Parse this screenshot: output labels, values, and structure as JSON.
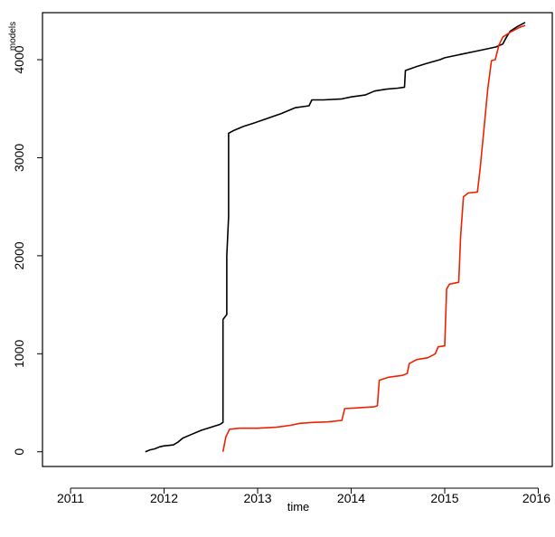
{
  "chart_data": {
    "type": "line",
    "title": "",
    "xlabel": "time",
    "ylabel": "models",
    "xlim": [
      2010.7,
      2016.15
    ],
    "ylim": [
      -150,
      4480
    ],
    "x_ticks": [
      2011,
      2012,
      2013,
      2014,
      2015,
      2016
    ],
    "x_tick_labels": [
      "2011",
      "2012",
      "2013",
      "2014",
      "2015",
      "2016"
    ],
    "y_ticks": [
      0,
      1000,
      2000,
      3000,
      4000
    ],
    "y_tick_labels": [
      "0",
      "1000",
      "2000",
      "3000",
      "4000"
    ],
    "grid": false,
    "legend": "none",
    "series": [
      {
        "color": "#000000",
        "points": [
          [
            2011.8,
            0
          ],
          [
            2011.85,
            20
          ],
          [
            2011.9,
            30
          ],
          [
            2011.95,
            50
          ],
          [
            2012.0,
            60
          ],
          [
            2012.05,
            65
          ],
          [
            2012.1,
            70
          ],
          [
            2012.15,
            100
          ],
          [
            2012.2,
            140
          ],
          [
            2012.3,
            180
          ],
          [
            2012.4,
            220
          ],
          [
            2012.5,
            250
          ],
          [
            2012.6,
            280
          ],
          [
            2012.63,
            300
          ],
          [
            2012.63,
            1350
          ],
          [
            2012.67,
            1400
          ],
          [
            2012.67,
            2000
          ],
          [
            2012.69,
            2400
          ],
          [
            2012.69,
            3250
          ],
          [
            2012.75,
            3280
          ],
          [
            2012.85,
            3320
          ],
          [
            2012.95,
            3350
          ],
          [
            2013.1,
            3400
          ],
          [
            2013.25,
            3450
          ],
          [
            2013.4,
            3510
          ],
          [
            2013.55,
            3530
          ],
          [
            2013.58,
            3590
          ],
          [
            2013.7,
            3590
          ],
          [
            2013.9,
            3600
          ],
          [
            2014.0,
            3620
          ],
          [
            2014.15,
            3640
          ],
          [
            2014.25,
            3680
          ],
          [
            2014.38,
            3700
          ],
          [
            2014.5,
            3710
          ],
          [
            2014.57,
            3720
          ],
          [
            2014.58,
            3890
          ],
          [
            2014.7,
            3930
          ],
          [
            2014.8,
            3960
          ],
          [
            2014.95,
            4000
          ],
          [
            2015.0,
            4020
          ],
          [
            2015.15,
            4050
          ],
          [
            2015.3,
            4080
          ],
          [
            2015.45,
            4110
          ],
          [
            2015.55,
            4130
          ],
          [
            2015.62,
            4160
          ],
          [
            2015.66,
            4230
          ],
          [
            2015.7,
            4290
          ],
          [
            2015.78,
            4340
          ],
          [
            2015.86,
            4380
          ]
        ]
      },
      {
        "color": "#ee2200",
        "points": [
          [
            2012.63,
            0
          ],
          [
            2012.66,
            150
          ],
          [
            2012.7,
            230
          ],
          [
            2012.8,
            240
          ],
          [
            2013.0,
            240
          ],
          [
            2013.2,
            250
          ],
          [
            2013.35,
            270
          ],
          [
            2013.45,
            290
          ],
          [
            2013.6,
            300
          ],
          [
            2013.75,
            305
          ],
          [
            2013.9,
            320
          ],
          [
            2013.93,
            440
          ],
          [
            2014.1,
            450
          ],
          [
            2014.25,
            460
          ],
          [
            2014.28,
            470
          ],
          [
            2014.3,
            730
          ],
          [
            2014.4,
            760
          ],
          [
            2014.55,
            780
          ],
          [
            2014.6,
            800
          ],
          [
            2014.62,
            900
          ],
          [
            2014.7,
            940
          ],
          [
            2014.82,
            960
          ],
          [
            2014.9,
            1000
          ],
          [
            2014.93,
            1070
          ],
          [
            2015.0,
            1080
          ],
          [
            2015.02,
            1660
          ],
          [
            2015.05,
            1710
          ],
          [
            2015.15,
            1730
          ],
          [
            2015.17,
            2200
          ],
          [
            2015.2,
            2600
          ],
          [
            2015.25,
            2640
          ],
          [
            2015.35,
            2650
          ],
          [
            2015.38,
            2900
          ],
          [
            2015.42,
            3300
          ],
          [
            2015.46,
            3700
          ],
          [
            2015.5,
            3990
          ],
          [
            2015.54,
            4000
          ],
          [
            2015.58,
            4150
          ],
          [
            2015.62,
            4230
          ],
          [
            2015.7,
            4280
          ],
          [
            2015.8,
            4330
          ],
          [
            2015.86,
            4350
          ]
        ]
      }
    ]
  }
}
